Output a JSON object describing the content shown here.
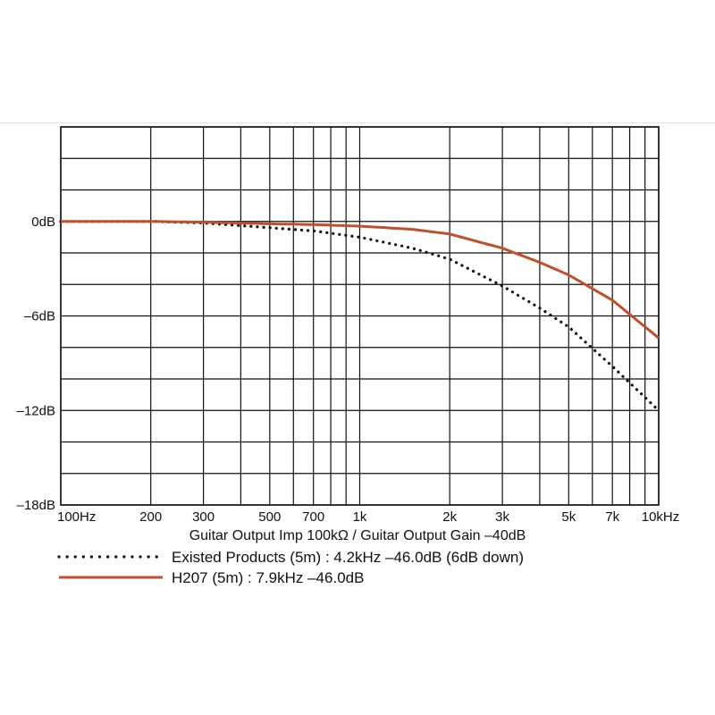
{
  "chart_data": {
    "type": "line",
    "xscale": "log",
    "xlim": [
      100,
      10000
    ],
    "ylim": [
      -18,
      6
    ],
    "grid": true,
    "xlabel": "Guitar Output Imp 100kΩ / Guitar Output Gain –40dB",
    "ylabel": "",
    "x_gridlines": [
      100,
      200,
      300,
      400,
      500,
      600,
      700,
      800,
      900,
      1000,
      2000,
      3000,
      4000,
      5000,
      6000,
      7000,
      8000,
      9000,
      10000
    ],
    "y_gridlines": [
      6,
      4,
      2,
      0,
      -2,
      -4,
      -6,
      -8,
      -10,
      -12,
      -14,
      -16,
      -18
    ],
    "xticks": [
      {
        "value": 100,
        "label": "100Hz"
      },
      {
        "value": 200,
        "label": "200"
      },
      {
        "value": 300,
        "label": "300"
      },
      {
        "value": 500,
        "label": "500"
      },
      {
        "value": 700,
        "label": "700"
      },
      {
        "value": 1000,
        "label": "1k"
      },
      {
        "value": 2000,
        "label": "2k"
      },
      {
        "value": 3000,
        "label": "3k"
      },
      {
        "value": 5000,
        "label": "5k"
      },
      {
        "value": 7000,
        "label": "7k"
      },
      {
        "value": 10000,
        "label": "10kHz"
      }
    ],
    "yticks": [
      {
        "value": 0,
        "label": "0dB"
      },
      {
        "value": -6,
        "label": "–6dB"
      },
      {
        "value": -12,
        "label": "–12dB"
      },
      {
        "value": -18,
        "label": "–18dB"
      }
    ],
    "series": [
      {
        "name": "Existed Products (5m) : 4.2kHz –46.0dB (6dB down)",
        "style": "dotted",
        "color": "#111111",
        "x": [
          100,
          200,
          300,
          500,
          700,
          1000,
          1500,
          2000,
          3000,
          4000,
          5000,
          7000,
          10000
        ],
        "y": [
          0,
          0,
          -0.1,
          -0.4,
          -0.6,
          -1.0,
          -1.7,
          -2.4,
          -4.1,
          -5.5,
          -6.7,
          -9.2,
          -12.0
        ]
      },
      {
        "name": "H207 (5m) : 7.9kHz –46.0dB",
        "style": "solid",
        "color": "#c0502a",
        "x": [
          100,
          200,
          300,
          500,
          700,
          1000,
          1500,
          2000,
          3000,
          4000,
          5000,
          7000,
          10000
        ],
        "y": [
          0,
          0,
          -0.05,
          -0.15,
          -0.2,
          -0.3,
          -0.5,
          -0.8,
          -1.7,
          -2.6,
          -3.4,
          -5.0,
          -7.4
        ]
      }
    ],
    "legend_position": "bottom"
  }
}
